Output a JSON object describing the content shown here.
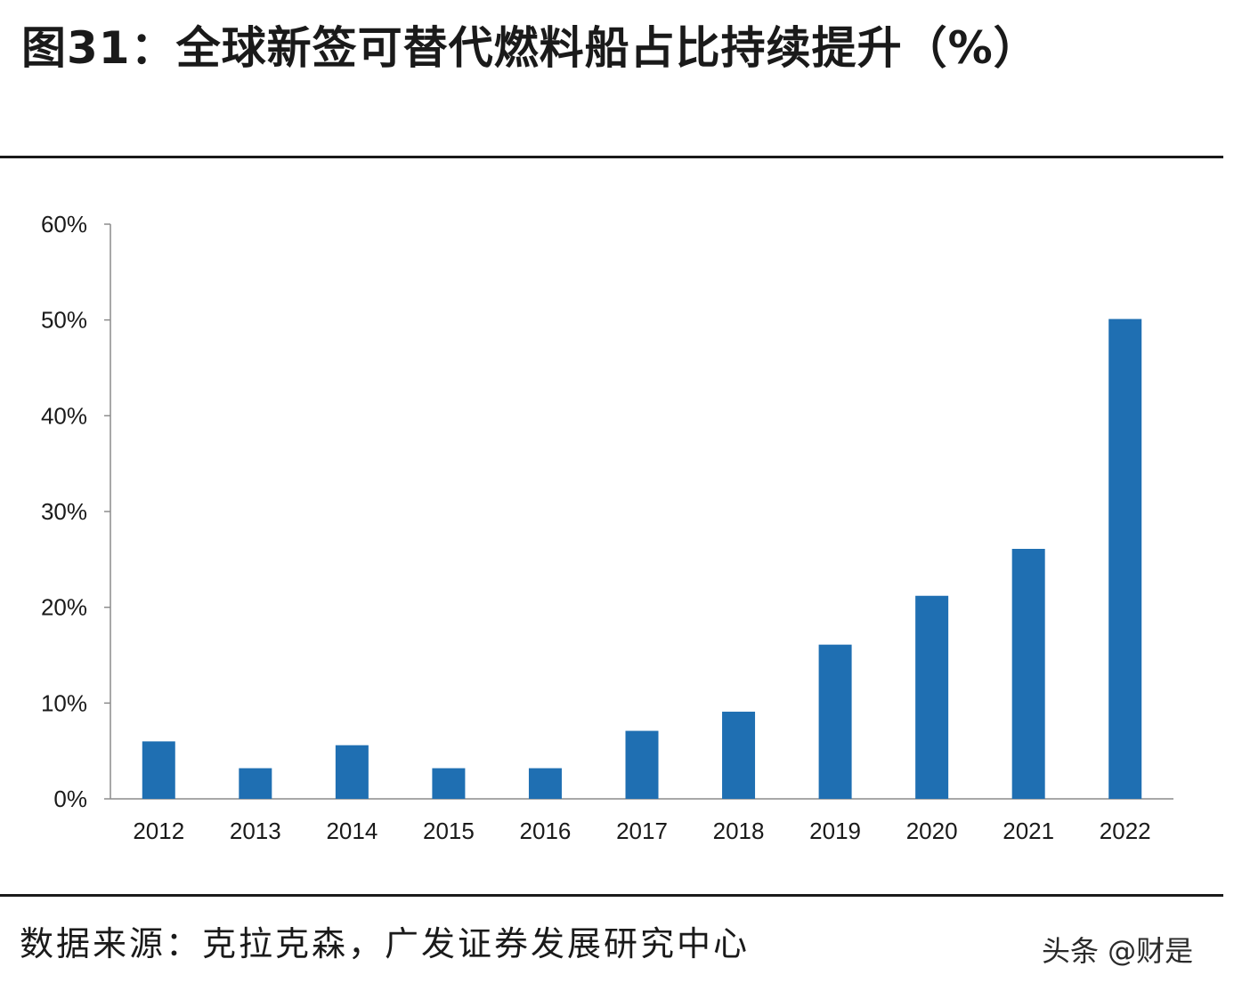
{
  "figure": {
    "title": "图31：全球新签可替代燃料船占比持续提升（%）",
    "source": "数据来源：克拉克森，广发证券发展研究中心",
    "watermark": "头条 @财是"
  },
  "colors": {
    "bar": "#1f6fb2",
    "axis": "#8c8c8c",
    "text": "#1a1a1a"
  },
  "chart_data": {
    "type": "bar",
    "categories": [
      "2012",
      "2013",
      "2014",
      "2015",
      "2016",
      "2017",
      "2018",
      "2019",
      "2020",
      "2021",
      "2022"
    ],
    "values": [
      6,
      3.2,
      5.6,
      3.2,
      3.2,
      7.1,
      9.1,
      16.1,
      21.2,
      26.1,
      50.1
    ],
    "ylim": [
      0,
      60
    ],
    "yticks": [
      0,
      10,
      20,
      30,
      40,
      50,
      60
    ],
    "ytick_labels": [
      "0%",
      "10%",
      "20%",
      "30%",
      "40%",
      "50%",
      "60%"
    ],
    "grid": false,
    "legend": "none"
  }
}
